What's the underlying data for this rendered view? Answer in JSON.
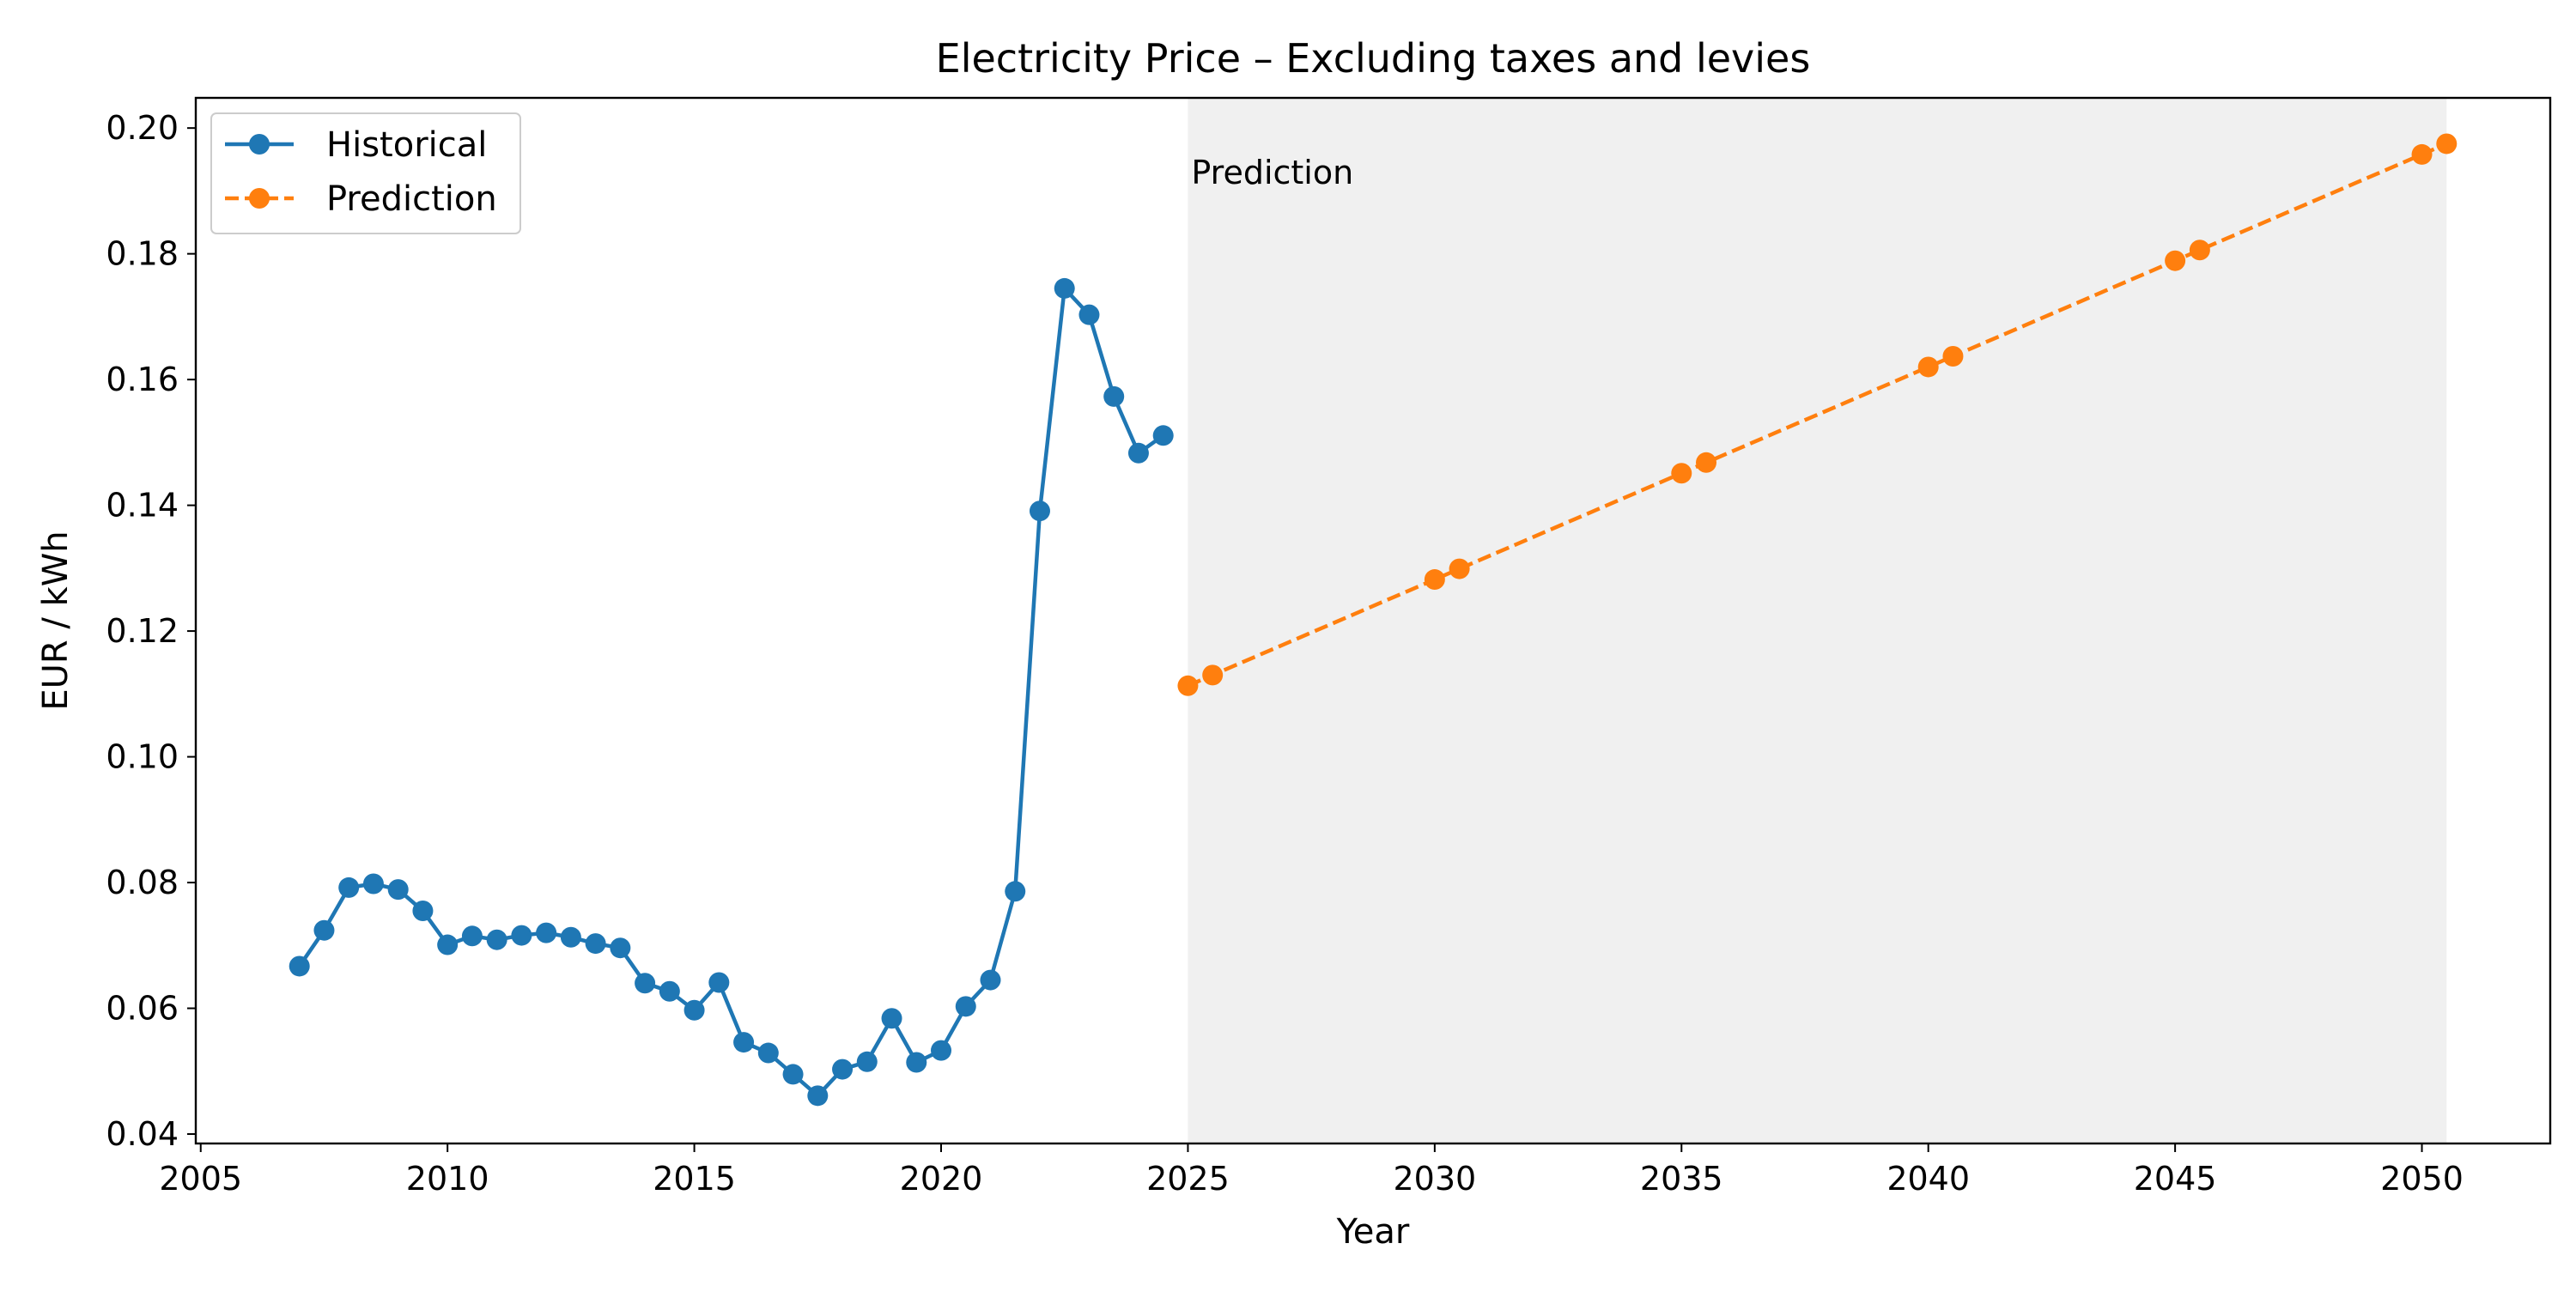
{
  "chart_data": {
    "type": "line",
    "title": "Electricity Price – Excluding taxes and levies",
    "xlabel": "Year",
    "ylabel": "EUR / kWh",
    "xlim": [
      2004.9,
      2052.6
    ],
    "ylim": [
      0.0385,
      0.2048
    ],
    "xticks": [
      2005,
      2010,
      2015,
      2020,
      2025,
      2030,
      2035,
      2040,
      2045,
      2050
    ],
    "yticks": [
      0.04,
      0.06,
      0.08,
      0.1,
      0.12,
      0.14,
      0.16,
      0.18,
      0.2
    ],
    "ytick_labels": [
      "0.04",
      "0.06",
      "0.08",
      "0.10",
      "0.12",
      "0.14",
      "0.16",
      "0.18",
      "0.20"
    ],
    "grid": false,
    "legend_position": "upper-left",
    "shaded_region": {
      "x": [
        2025.0,
        2050.5
      ],
      "label": "Prediction",
      "color": "#f0f0f0"
    },
    "series": [
      {
        "name": "Historical",
        "color": "#1f77b4",
        "style": "solid",
        "x": [
          2007.0,
          2007.5,
          2008.0,
          2008.5,
          2009.0,
          2009.5,
          2010.0,
          2010.5,
          2011.0,
          2011.5,
          2012.0,
          2012.5,
          2013.0,
          2013.5,
          2014.0,
          2014.5,
          2015.0,
          2015.5,
          2016.0,
          2016.5,
          2017.0,
          2017.5,
          2018.0,
          2018.5,
          2019.0,
          2019.5,
          2020.0,
          2020.5,
          2021.0,
          2021.5,
          2022.0,
          2022.5,
          2023.0,
          2023.5,
          2024.0,
          2024.5
        ],
        "y": [
          0.0667,
          0.0724,
          0.0792,
          0.0798,
          0.0789,
          0.0755,
          0.0701,
          0.0715,
          0.0709,
          0.0716,
          0.072,
          0.0713,
          0.0703,
          0.0696,
          0.064,
          0.0627,
          0.0597,
          0.0641,
          0.0546,
          0.0529,
          0.0495,
          0.0461,
          0.0503,
          0.0515,
          0.0584,
          0.0514,
          0.0533,
          0.0603,
          0.0645,
          0.0786,
          0.1391,
          0.1745,
          0.1703,
          0.1573,
          0.1483,
          0.1511
        ]
      },
      {
        "name": "Prediction",
        "color": "#ff7f0e",
        "style": "dashed",
        "x": [
          2025.0,
          2025.5,
          2030.0,
          2030.5,
          2035.0,
          2035.5,
          2040.0,
          2040.5,
          2045.0,
          2045.5,
          2050.0,
          2050.5
        ],
        "y": [
          0.1113,
          0.113,
          0.1282,
          0.1299,
          0.1451,
          0.1468,
          0.162,
          0.1637,
          0.1789,
          0.1806,
          0.1958,
          0.1975
        ]
      }
    ]
  }
}
